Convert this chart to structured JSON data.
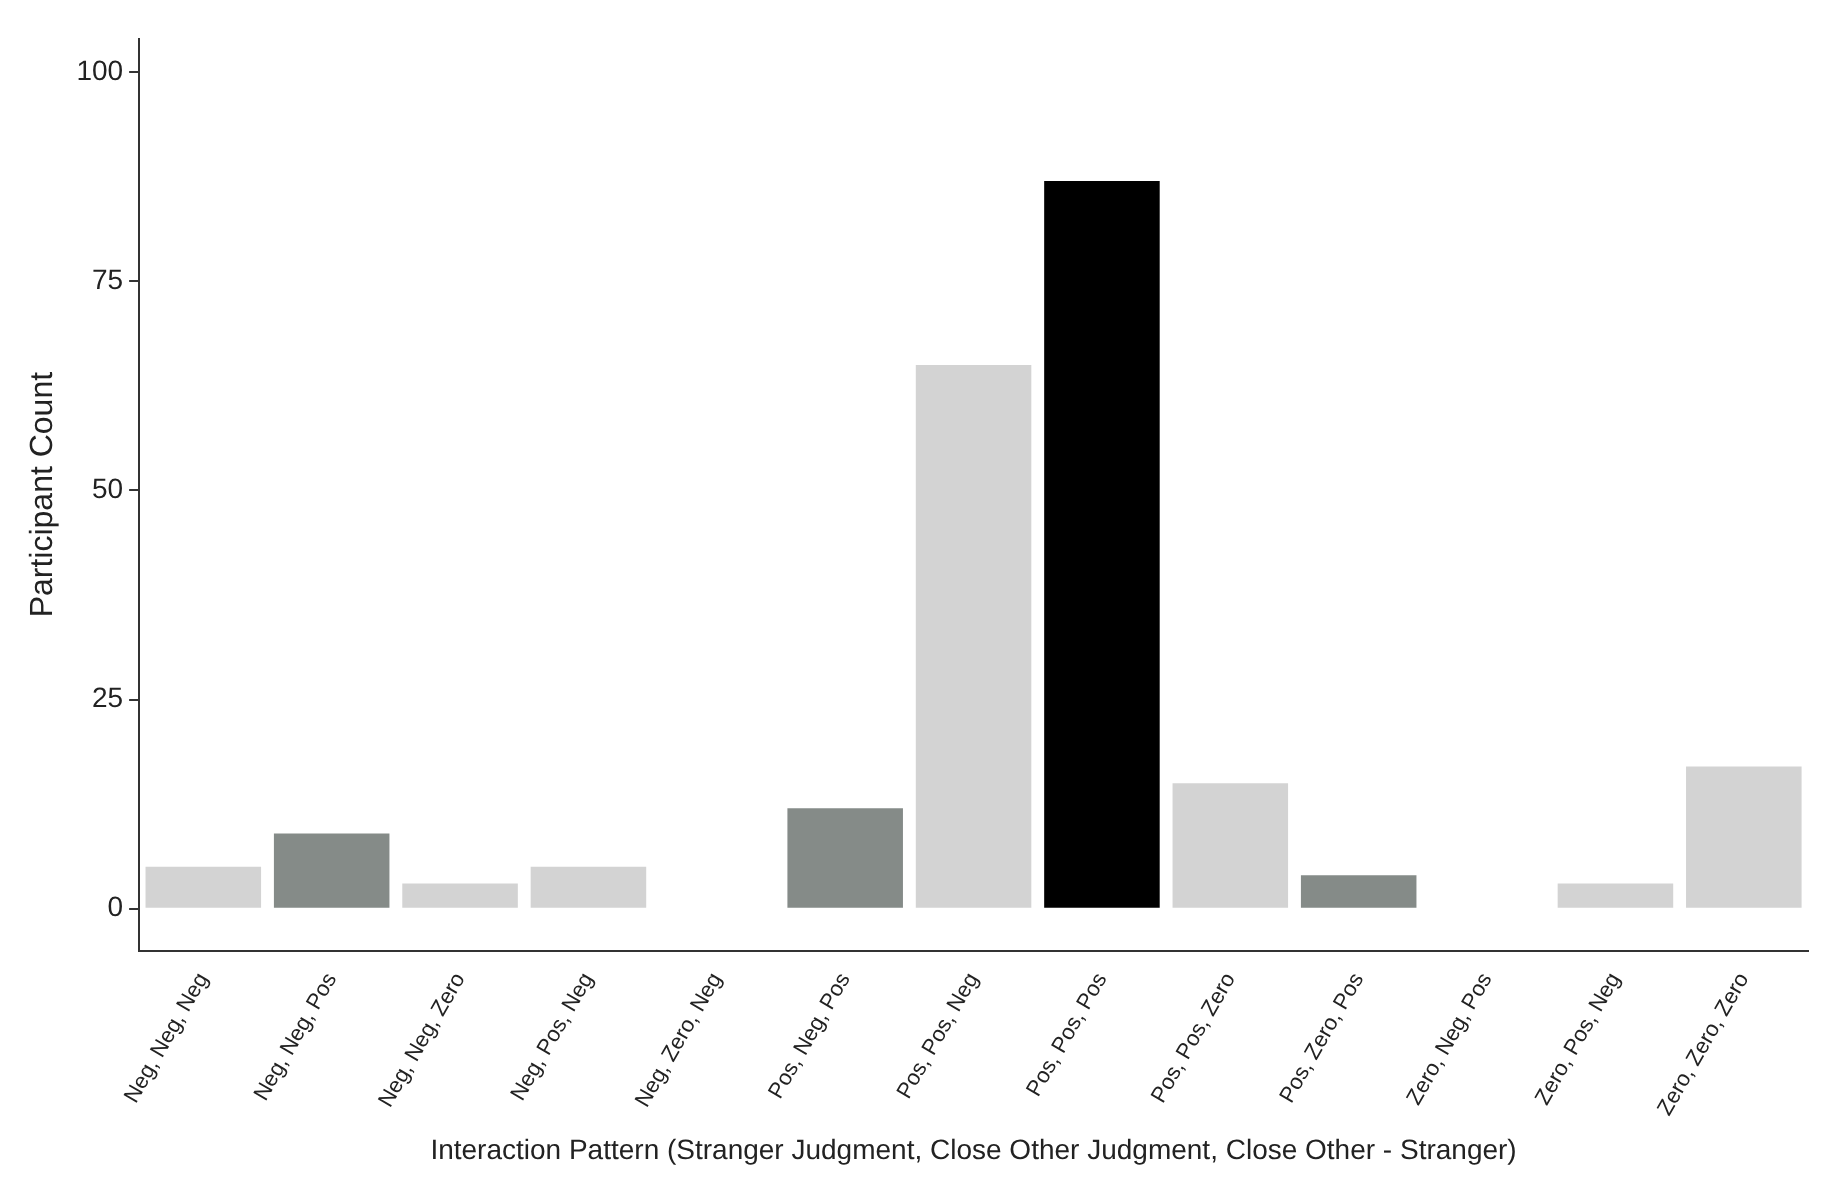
{
  "chart_data": {
    "type": "bar",
    "xlabel": "Interaction Pattern (Stranger Judgment, Close Other Judgment, Close Other - Stranger)",
    "ylabel": "Participant Count",
    "categories": [
      "Neg, Neg, Neg",
      "Neg, Neg, Pos",
      "Neg, Neg, Zero",
      "Neg, Pos, Neg",
      "Neg, Zero, Neg",
      "Pos, Neg, Pos",
      "Pos, Pos, Neg",
      "Pos, Pos, Pos",
      "Pos, Pos, Zero",
      "Pos, Zero, Pos",
      "Zero, Neg, Pos",
      "Zero, Pos, Neg",
      "Zero, Zero, Zero"
    ],
    "values": [
      5,
      9,
      3,
      5,
      0,
      12,
      65,
      87,
      15,
      4,
      0,
      3,
      17
    ],
    "colors": [
      "#d3d3d3",
      "#858b88",
      "#d3d3d3",
      "#d3d3d3",
      "#d3d3d3",
      "#858b88",
      "#d3d3d3",
      "#000000",
      "#d3d3d3",
      "#858b88",
      "#d3d3d3",
      "#d3d3d3",
      "#d3d3d3"
    ],
    "ylim": [
      -5,
      104
    ],
    "yticks": [
      0,
      25,
      50,
      75,
      100
    ],
    "grid": false,
    "legend": false
  }
}
